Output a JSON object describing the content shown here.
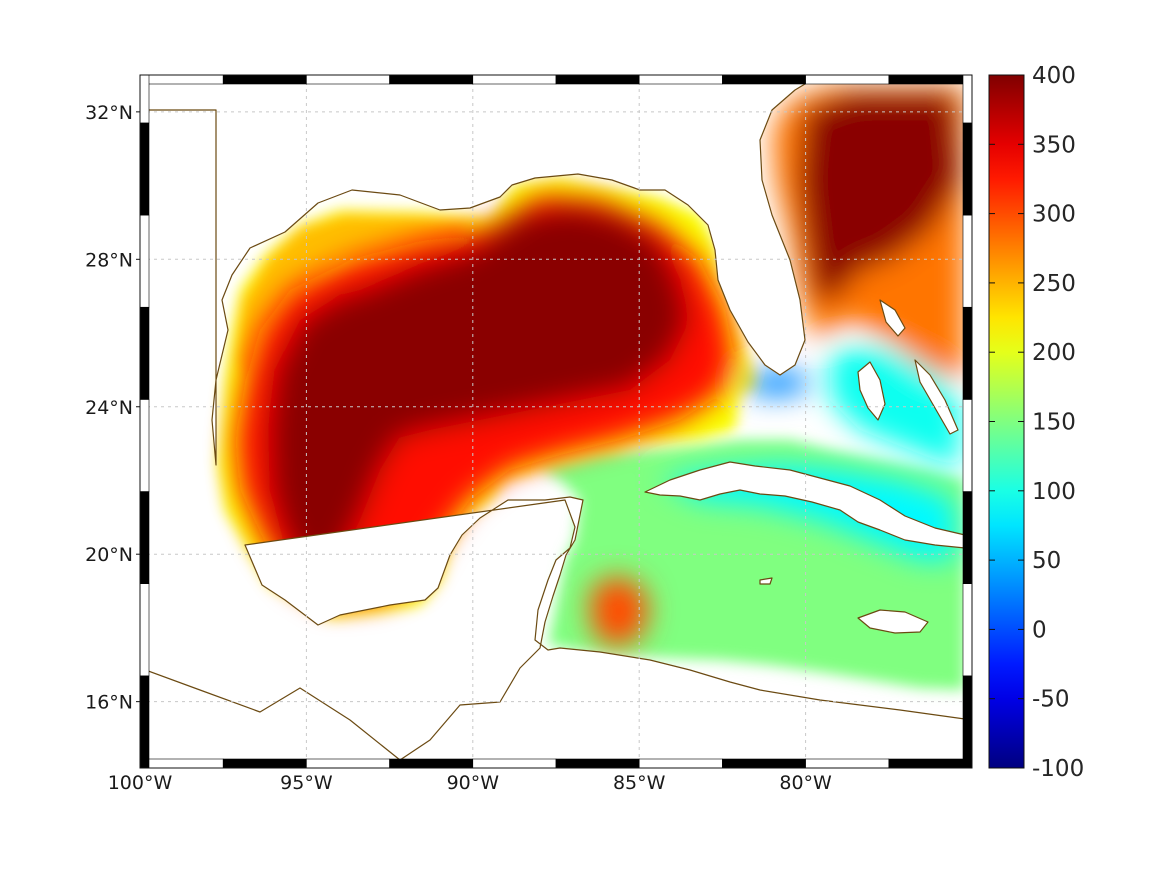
{
  "map": {
    "type": "map",
    "projection": "geographic",
    "lon_range": [
      -100,
      -75
    ],
    "lat_range": [
      14.2,
      33
    ],
    "grid": true,
    "lat_ticks": [
      {
        "value": 32,
        "label": "32°N"
      },
      {
        "value": 28,
        "label": "28°N"
      },
      {
        "value": 24,
        "label": "24°N"
      },
      {
        "value": 20,
        "label": "20°N"
      },
      {
        "value": 16,
        "label": "16°N"
      }
    ],
    "lon_ticks": [
      {
        "value": -100,
        "label": "100°W"
      },
      {
        "value": -95,
        "label": "95°W"
      },
      {
        "value": -90,
        "label": "90°W"
      },
      {
        "value": -85,
        "label": "85°W"
      },
      {
        "value": -80,
        "label": "80°W"
      }
    ],
    "colors": {
      "coastline": "#6b4a12",
      "land": "#ffffff",
      "grid": "#c8c8c8"
    }
  },
  "colorbar": {
    "colormap": "jet",
    "min": -100,
    "max": 400,
    "placement": "right",
    "ticks": [
      {
        "value": 400,
        "label": "400"
      },
      {
        "value": 350,
        "label": "350"
      },
      {
        "value": 300,
        "label": "300"
      },
      {
        "value": 250,
        "label": "250"
      },
      {
        "value": 200,
        "label": "200"
      },
      {
        "value": 150,
        "label": "150"
      },
      {
        "value": 100,
        "label": "100"
      },
      {
        "value": 50,
        "label": "50"
      },
      {
        "value": 0,
        "label": "0"
      },
      {
        "value": -50,
        "label": "-50"
      },
      {
        "value": -100,
        "label": "-100"
      }
    ]
  },
  "field_regions": [
    {
      "name": "gulf-background",
      "value": 210
    },
    {
      "name": "western-gulf-core",
      "value": 395
    },
    {
      "name": "central-gulf-core",
      "value": 395
    },
    {
      "name": "gulf-ring",
      "value": 330
    },
    {
      "name": "texas-shelf",
      "value": 245
    },
    {
      "name": "atlantic-core",
      "value": 395
    },
    {
      "name": "atlantic-edge",
      "value": 280
    },
    {
      "name": "caribbean-basin",
      "value": 150
    },
    {
      "name": "cuba-channel",
      "value": 85
    },
    {
      "name": "bahamas-waters",
      "value": 95
    },
    {
      "name": "florida-straits",
      "value": 30
    },
    {
      "name": "honduras-eddy",
      "value": 300
    }
  ]
}
